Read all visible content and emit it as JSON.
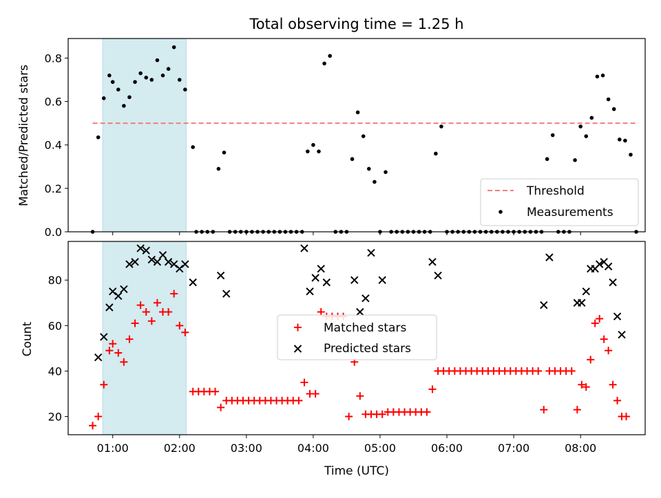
{
  "chart_data": [
    {
      "type": "scatter",
      "title": "Total observing time = 1.25 h",
      "ylabel": "Matched/Predicted stars",
      "xlabel": "",
      "xlim": [
        "00:20",
        "08:58"
      ],
      "ylim": [
        0,
        0.89
      ],
      "yticks": [
        "0.0",
        "0.2",
        "0.4",
        "0.6",
        "0.8"
      ],
      "xticks": [
        "01:00",
        "02:00",
        "03:00",
        "04:00",
        "05:00",
        "06:00",
        "07:00",
        "08:00"
      ],
      "highlight_band": {
        "start": "00:51",
        "end": "02:06",
        "color": "#d4ebf0"
      },
      "threshold": {
        "name": "Threshold",
        "value": 0.5,
        "color": "#f47c7c",
        "style": "dashed"
      },
      "legend_position": "lower right",
      "series": [
        {
          "name": "Measurements",
          "color": "#000000",
          "marker": "dot",
          "points": [
            [
              "00:42",
              0
            ],
            [
              "00:47",
              0.435
            ],
            [
              "00:52",
              0.615
            ],
            [
              "00:57",
              0.72
            ],
            [
              "01:00",
              0.69
            ],
            [
              "01:05",
              0.655
            ],
            [
              "01:10",
              0.58
            ],
            [
              "01:15",
              0.62
            ],
            [
              "01:20",
              0.69
            ],
            [
              "01:25",
              0.73
            ],
            [
              "01:30",
              0.71
            ],
            [
              "01:35",
              0.7
            ],
            [
              "01:40",
              0.79
            ],
            [
              "01:45",
              0.72
            ],
            [
              "01:50",
              0.75
            ],
            [
              "01:55",
              0.85
            ],
            [
              "02:00",
              0.7
            ],
            [
              "02:05",
              0.655
            ],
            [
              "02:12",
              0.39
            ],
            [
              "02:15",
              0
            ],
            [
              "02:20",
              0
            ],
            [
              "02:25",
              0
            ],
            [
              "02:30",
              0
            ],
            [
              "02:35",
              0.29
            ],
            [
              "02:40",
              0.365
            ],
            [
              "02:45",
              0
            ],
            [
              "02:50",
              0
            ],
            [
              "02:55",
              0
            ],
            [
              "03:00",
              0
            ],
            [
              "03:05",
              0
            ],
            [
              "03:10",
              0
            ],
            [
              "03:15",
              0
            ],
            [
              "03:20",
              0
            ],
            [
              "03:25",
              0
            ],
            [
              "03:30",
              0
            ],
            [
              "03:35",
              0
            ],
            [
              "03:40",
              0
            ],
            [
              "03:45",
              0
            ],
            [
              "03:50",
              0
            ],
            [
              "03:55",
              0.37
            ],
            [
              "04:00",
              0.4
            ],
            [
              "04:05",
              0.37
            ],
            [
              "04:10",
              0.775
            ],
            [
              "04:15",
              0.81
            ],
            [
              "04:20",
              0
            ],
            [
              "04:25",
              0
            ],
            [
              "04:30",
              0
            ],
            [
              "04:35",
              0.335
            ],
            [
              "04:40",
              0.55
            ],
            [
              "04:45",
              0.44
            ],
            [
              "04:50",
              0.29
            ],
            [
              "04:55",
              0.23
            ],
            [
              "05:00",
              0
            ],
            [
              "05:05",
              0.275
            ],
            [
              "05:10",
              0
            ],
            [
              "05:15",
              0
            ],
            [
              "05:20",
              0
            ],
            [
              "05:25",
              0
            ],
            [
              "05:30",
              0
            ],
            [
              "05:35",
              0
            ],
            [
              "05:40",
              0
            ],
            [
              "05:45",
              0
            ],
            [
              "05:50",
              0.36
            ],
            [
              "05:55",
              0.485
            ],
            [
              "06:00",
              0
            ],
            [
              "06:05",
              0
            ],
            [
              "06:10",
              0
            ],
            [
              "06:15",
              0
            ],
            [
              "06:20",
              0
            ],
            [
              "06:25",
              0
            ],
            [
              "06:30",
              0
            ],
            [
              "06:35",
              0
            ],
            [
              "06:40",
              0
            ],
            [
              "06:45",
              0
            ],
            [
              "06:50",
              0
            ],
            [
              "06:55",
              0
            ],
            [
              "07:00",
              0
            ],
            [
              "07:05",
              0
            ],
            [
              "07:10",
              0
            ],
            [
              "07:15",
              0
            ],
            [
              "07:20",
              0
            ],
            [
              "07:25",
              0
            ],
            [
              "07:30",
              0.335
            ],
            [
              "07:35",
              0.445
            ],
            [
              "07:40",
              0
            ],
            [
              "07:45",
              0
            ],
            [
              "07:50",
              0
            ],
            [
              "07:55",
              0.33
            ],
            [
              "08:00",
              0.485
            ],
            [
              "08:05",
              0.44
            ],
            [
              "08:10",
              0.525
            ],
            [
              "08:15",
              0.715
            ],
            [
              "08:20",
              0.72
            ],
            [
              "08:25",
              0.61
            ],
            [
              "08:30",
              0.565
            ],
            [
              "08:35",
              0.425
            ],
            [
              "08:40",
              0.42
            ],
            [
              "08:45",
              0.355
            ],
            [
              "08:50",
              0
            ]
          ]
        }
      ]
    },
    {
      "type": "scatter",
      "title": "",
      "xlabel": "Time (UTC)",
      "ylabel": "Count",
      "xlim": [
        "00:20",
        "08:58"
      ],
      "ylim": [
        12,
        97
      ],
      "yticks": [
        "20",
        "40",
        "60",
        "80"
      ],
      "xticks": [
        "01:00",
        "02:00",
        "03:00",
        "04:00",
        "05:00",
        "06:00",
        "07:00",
        "08:00"
      ],
      "highlight_band": {
        "start": "00:51",
        "end": "02:06",
        "color": "#d4ebf0"
      },
      "legend_position": "center",
      "series": [
        {
          "name": "Matched stars",
          "color": "#ff0000",
          "marker": "plus",
          "points": [
            [
              "00:42",
              16
            ],
            [
              "00:47",
              20
            ],
            [
              "00:52",
              34
            ],
            [
              "00:57",
              49
            ],
            [
              "01:00",
              52
            ],
            [
              "01:05",
              48
            ],
            [
              "01:10",
              44
            ],
            [
              "01:15",
              54
            ],
            [
              "01:20",
              61
            ],
            [
              "01:25",
              69
            ],
            [
              "01:30",
              66
            ],
            [
              "01:35",
              62
            ],
            [
              "01:40",
              70
            ],
            [
              "01:45",
              66
            ],
            [
              "01:50",
              66
            ],
            [
              "01:55",
              74
            ],
            [
              "02:00",
              60
            ],
            [
              "02:05",
              57
            ],
            [
              "02:12",
              31
            ],
            [
              "02:17",
              31
            ],
            [
              "02:22",
              31
            ],
            [
              "02:27",
              31
            ],
            [
              "02:32",
              31
            ],
            [
              "02:37",
              24
            ],
            [
              "02:42",
              27
            ],
            [
              "02:47",
              27
            ],
            [
              "02:52",
              27
            ],
            [
              "02:57",
              27
            ],
            [
              "03:02",
              27
            ],
            [
              "03:07",
              27
            ],
            [
              "03:12",
              27
            ],
            [
              "03:17",
              27
            ],
            [
              "03:22",
              27
            ],
            [
              "03:27",
              27
            ],
            [
              "03:32",
              27
            ],
            [
              "03:37",
              27
            ],
            [
              "03:42",
              27
            ],
            [
              "03:47",
              27
            ],
            [
              "03:52",
              35
            ],
            [
              "03:57",
              30
            ],
            [
              "04:02",
              30
            ],
            [
              "04:07",
              66
            ],
            [
              "04:12",
              64
            ],
            [
              "04:17",
              64
            ],
            [
              "04:22",
              64
            ],
            [
              "04:27",
              64
            ],
            [
              "04:32",
              20
            ],
            [
              "04:37",
              44
            ],
            [
              "04:42",
              29
            ],
            [
              "04:47",
              21
            ],
            [
              "04:52",
              21
            ],
            [
              "04:57",
              21
            ],
            [
              "05:02",
              21
            ],
            [
              "05:07",
              22
            ],
            [
              "05:12",
              22
            ],
            [
              "05:17",
              22
            ],
            [
              "05:22",
              22
            ],
            [
              "05:27",
              22
            ],
            [
              "05:32",
              22
            ],
            [
              "05:37",
              22
            ],
            [
              "05:42",
              22
            ],
            [
              "05:47",
              32
            ],
            [
              "05:52",
              40
            ],
            [
              "05:57",
              40
            ],
            [
              "06:02",
              40
            ],
            [
              "06:07",
              40
            ],
            [
              "06:12",
              40
            ],
            [
              "06:17",
              40
            ],
            [
              "06:22",
              40
            ],
            [
              "06:27",
              40
            ],
            [
              "06:32",
              40
            ],
            [
              "06:37",
              40
            ],
            [
              "06:42",
              40
            ],
            [
              "06:47",
              40
            ],
            [
              "06:52",
              40
            ],
            [
              "06:57",
              40
            ],
            [
              "07:02",
              40
            ],
            [
              "07:07",
              40
            ],
            [
              "07:12",
              40
            ],
            [
              "07:17",
              40
            ],
            [
              "07:22",
              40
            ],
            [
              "07:27",
              23
            ],
            [
              "07:32",
              40
            ],
            [
              "07:37",
              40
            ],
            [
              "07:42",
              40
            ],
            [
              "07:47",
              40
            ],
            [
              "07:52",
              40
            ],
            [
              "07:57",
              23
            ],
            [
              "08:01",
              34
            ],
            [
              "08:05",
              33
            ],
            [
              "08:09",
              45
            ],
            [
              "08:13",
              61
            ],
            [
              "08:17",
              63
            ],
            [
              "08:21",
              54
            ],
            [
              "08:25",
              49
            ],
            [
              "08:29",
              34
            ],
            [
              "08:33",
              27
            ],
            [
              "08:37",
              20
            ],
            [
              "08:41",
              20
            ]
          ]
        },
        {
          "name": "Predicted stars",
          "color": "#000000",
          "marker": "x",
          "points": [
            [
              "00:47",
              46
            ],
            [
              "00:52",
              55
            ],
            [
              "00:57",
              68
            ],
            [
              "01:00",
              75
            ],
            [
              "01:05",
              73
            ],
            [
              "01:10",
              76
            ],
            [
              "01:15",
              87
            ],
            [
              "01:20",
              88
            ],
            [
              "01:25",
              94
            ],
            [
              "01:30",
              93
            ],
            [
              "01:35",
              89
            ],
            [
              "01:40",
              88
            ],
            [
              "01:45",
              91
            ],
            [
              "01:50",
              88
            ],
            [
              "01:55",
              87
            ],
            [
              "02:00",
              85
            ],
            [
              "02:05",
              87
            ],
            [
              "02:12",
              79
            ],
            [
              "02:37",
              82
            ],
            [
              "02:42",
              74
            ],
            [
              "03:52",
              94
            ],
            [
              "03:57",
              75
            ],
            [
              "04:02",
              81
            ],
            [
              "04:07",
              85
            ],
            [
              "04:12",
              79
            ],
            [
              "04:37",
              80
            ],
            [
              "04:42",
              66
            ],
            [
              "04:47",
              72
            ],
            [
              "04:52",
              92
            ],
            [
              "05:02",
              80
            ],
            [
              "05:47",
              88
            ],
            [
              "05:52",
              82
            ],
            [
              "07:27",
              69
            ],
            [
              "07:32",
              90
            ],
            [
              "07:57",
              70
            ],
            [
              "08:01",
              70
            ],
            [
              "08:05",
              75
            ],
            [
              "08:09",
              85
            ],
            [
              "08:13",
              85
            ],
            [
              "08:17",
              87
            ],
            [
              "08:21",
              88
            ],
            [
              "08:25",
              86
            ],
            [
              "08:29",
              79
            ],
            [
              "08:33",
              64
            ],
            [
              "08:37",
              56
            ]
          ]
        }
      ]
    }
  ]
}
